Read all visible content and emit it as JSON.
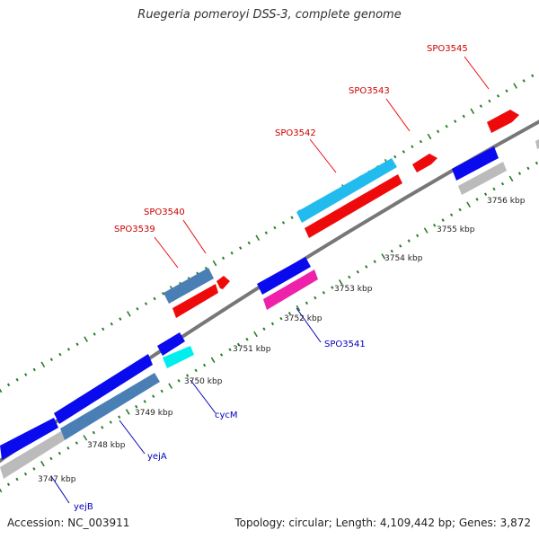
{
  "title": "Ruegeria pomeroyi DSS-3, complete genome",
  "footer": {
    "accession": "Accession: NC_003911",
    "summary": "Topology: circular; Length: 4,109,442 bp; Genes: 3,872"
  },
  "colors": {
    "forward_cds": "#0a0aee",
    "reverse_cds": "#ee0a0a",
    "steelblue": "#4a7fb5",
    "cyan": "#22bbee",
    "aqua": "#00eeee",
    "magenta": "#ee22aa",
    "gray": "#bbbbbb",
    "backbone": "#777777",
    "tick": "#2a7d2a",
    "gene_label_forward": "#0000bb",
    "gene_label_reverse": "#cc0000"
  },
  "scale": {
    "unit": "kbp",
    "ticks": [
      "3747 kbp",
      "3748 kbp",
      "3749 kbp",
      "3750 kbp",
      "3751 kbp",
      "3752 kbp",
      "3753 kbp",
      "3754 kbp",
      "3755 kbp",
      "3756 kbp"
    ]
  },
  "gene_labels": {
    "reverse": [
      "SPO3539",
      "SPO3540",
      "SPO3542",
      "SPO3543",
      "SPO3545"
    ],
    "forward": [
      "yejB",
      "yejA",
      "cycM",
      "SPO3541"
    ]
  }
}
